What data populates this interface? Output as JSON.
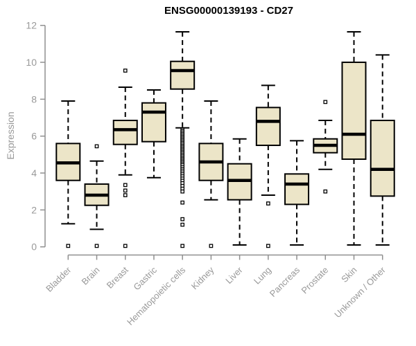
{
  "chart_data": {
    "type": "boxplot",
    "title": "ENSG00000139193 - CD27",
    "ylabel": "Expression",
    "xlabel": "",
    "ylim": [
      0,
      12
    ],
    "yticks": [
      0,
      2,
      4,
      6,
      8,
      10,
      12
    ],
    "grid": false,
    "legend": "none",
    "colors": {
      "box_fill": "#ece5c8",
      "box_stroke": "#000000",
      "median_stroke": "#000000",
      "axis_line": "#8f8f8f",
      "label_text": "#999999",
      "title_text": "#000000",
      "background": "#ffffff"
    },
    "categories": [
      "Bladder",
      "Brain",
      "Breast",
      "Gastric",
      "Hematopoietic cells",
      "Kidney",
      "Liver",
      "Lung",
      "Pancreas",
      "Prostate",
      "Skin",
      "Unknown / Other"
    ],
    "boxes": [
      {
        "category": "Bladder",
        "whisker_low": 1.25,
        "q1": 3.6,
        "median": 4.55,
        "q3": 5.6,
        "whisker_high": 7.9,
        "outliers": [
          0.05
        ]
      },
      {
        "category": "Brain",
        "whisker_low": 0.95,
        "q1": 2.25,
        "median": 2.8,
        "q3": 3.4,
        "whisker_high": 4.65,
        "outliers": [
          5.45,
          0.05
        ]
      },
      {
        "category": "Breast",
        "whisker_low": 3.9,
        "q1": 5.55,
        "median": 6.35,
        "q3": 6.85,
        "whisker_high": 8.65,
        "outliers": [
          9.55,
          3.35,
          3.05,
          2.8,
          0.05
        ]
      },
      {
        "category": "Gastric",
        "whisker_low": 3.75,
        "q1": 5.7,
        "median": 7.3,
        "q3": 7.8,
        "whisker_high": 8.5,
        "outliers": []
      },
      {
        "category": "Hematopoietic cells",
        "whisker_low": 6.45,
        "q1": 8.55,
        "median": 9.55,
        "q3": 10.05,
        "whisker_high": 11.65,
        "outliers": [
          6.35,
          6.27,
          6.19,
          6.11,
          6.03,
          5.95,
          5.87,
          5.79,
          5.71,
          5.63,
          5.55,
          5.47,
          5.39,
          5.31,
          5.23,
          5.15,
          5.07,
          4.99,
          4.91,
          4.83,
          4.75,
          4.67,
          4.59,
          4.51,
          4.43,
          4.33,
          4.23,
          4.13,
          4.03,
          3.93,
          3.82,
          3.7,
          3.58,
          3.45,
          3.3,
          3.15,
          3.0,
          2.4,
          1.5,
          1.2,
          0.05
        ]
      },
      {
        "category": "Kidney",
        "whisker_low": 2.55,
        "q1": 3.6,
        "median": 4.6,
        "q3": 5.6,
        "whisker_high": 7.9,
        "outliers": [
          0.05
        ]
      },
      {
        "category": "Liver",
        "whisker_low": 0.1,
        "q1": 2.55,
        "median": 3.6,
        "q3": 4.5,
        "whisker_high": 5.85,
        "outliers": []
      },
      {
        "category": "Lung",
        "whisker_low": 2.8,
        "q1": 5.5,
        "median": 6.8,
        "q3": 7.55,
        "whisker_high": 8.75,
        "outliers": [
          2.35,
          0.05
        ]
      },
      {
        "category": "Pancreas",
        "whisker_low": 0.1,
        "q1": 2.3,
        "median": 3.4,
        "q3": 3.95,
        "whisker_high": 5.75,
        "outliers": []
      },
      {
        "category": "Prostate",
        "whisker_low": 4.2,
        "q1": 5.1,
        "median": 5.5,
        "q3": 5.85,
        "whisker_high": 6.85,
        "outliers": [
          7.85,
          3.0
        ]
      },
      {
        "category": "Skin",
        "whisker_low": 0.1,
        "q1": 4.75,
        "median": 6.1,
        "q3": 10.0,
        "whisker_high": 11.65,
        "outliers": []
      },
      {
        "category": "Unknown / Other",
        "whisker_low": 0.1,
        "q1": 2.75,
        "median": 4.2,
        "q3": 6.85,
        "whisker_high": 10.4,
        "outliers": []
      }
    ]
  }
}
